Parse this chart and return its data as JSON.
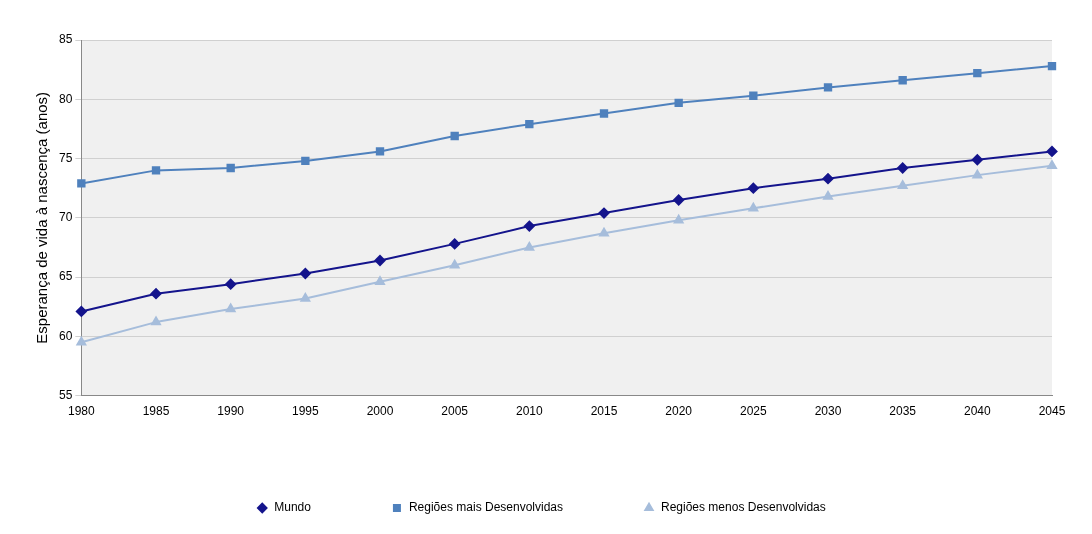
{
  "chart_data": {
    "type": "line",
    "ylabel": "Esperança de vida à nascença (anos)",
    "categories": [
      "1980",
      "1985",
      "1990",
      "1995",
      "2000",
      "2005",
      "2010",
      "2015",
      "2020",
      "2025",
      "2030",
      "2035",
      "2040",
      "2045"
    ],
    "series": [
      {
        "name": "Mundo",
        "color": "#14148c",
        "marker": "diamond",
        "values": [
          62.1,
          63.6,
          64.4,
          65.3,
          66.4,
          67.8,
          69.3,
          70.4,
          71.5,
          72.5,
          73.3,
          74.2,
          74.9,
          75.6
        ]
      },
      {
        "name": "Regiões mais Desenvolvidas",
        "color": "#4f81bd",
        "marker": "square",
        "values": [
          72.9,
          74.0,
          74.2,
          74.8,
          75.6,
          76.9,
          77.9,
          78.8,
          79.7,
          80.3,
          81.0,
          81.6,
          82.2,
          82.8
        ]
      },
      {
        "name": "Regiões menos Desenvolvidas",
        "color": "#a6bddb",
        "marker": "triangle",
        "values": [
          59.5,
          61.2,
          62.3,
          63.2,
          64.6,
          66.0,
          67.5,
          68.7,
          69.8,
          70.8,
          71.8,
          72.7,
          73.6,
          74.4
        ]
      }
    ],
    "ylim": [
      55,
      85
    ],
    "yticks": [
      55,
      60,
      65,
      70,
      75,
      80,
      85
    ],
    "grid": "y",
    "legend": "bottom",
    "line_style": "solid"
  }
}
